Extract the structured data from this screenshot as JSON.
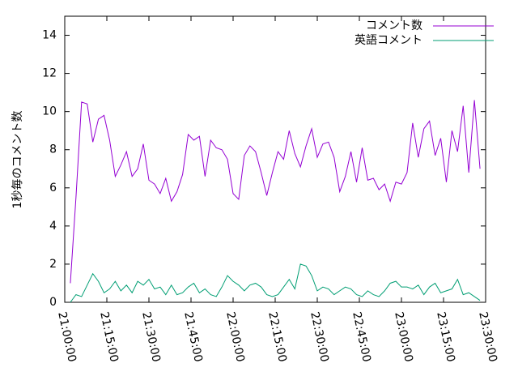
{
  "chart_data": {
    "type": "line",
    "ylabel": "1秒毎のコメント数",
    "x": [
      "21:02:00",
      "21:04:00",
      "21:06:00",
      "21:08:00",
      "21:10:00",
      "21:12:00",
      "21:14:00",
      "21:16:00",
      "21:18:00",
      "21:20:00",
      "21:22:00",
      "21:24:00",
      "21:26:00",
      "21:28:00",
      "21:30:00",
      "21:32:00",
      "21:34:00",
      "21:36:00",
      "21:38:00",
      "21:40:00",
      "21:42:00",
      "21:44:00",
      "21:46:00",
      "21:48:00",
      "21:50:00",
      "21:52:00",
      "21:54:00",
      "21:56:00",
      "21:58:00",
      "22:00:00",
      "22:02:00",
      "22:04:00",
      "22:06:00",
      "22:08:00",
      "22:10:00",
      "22:12:00",
      "22:14:00",
      "22:16:00",
      "22:18:00",
      "22:20:00",
      "22:22:00",
      "22:24:00",
      "22:26:00",
      "22:28:00",
      "22:30:00",
      "22:32:00",
      "22:34:00",
      "22:36:00",
      "22:38:00",
      "22:40:00",
      "22:42:00",
      "22:44:00",
      "22:46:00",
      "22:48:00",
      "22:50:00",
      "22:52:00",
      "22:54:00",
      "22:56:00",
      "22:58:00",
      "23:00:00",
      "23:02:00",
      "23:04:00",
      "23:06:00",
      "23:08:00",
      "23:10:00",
      "23:12:00",
      "23:14:00",
      "23:16:00",
      "23:18:00",
      "23:20:00",
      "23:22:00",
      "23:24:00",
      "23:26:00",
      "23:28:00"
    ],
    "series": [
      {
        "name": "コメント数",
        "color": "#9400d3",
        "values": [
          1.0,
          5.5,
          10.5,
          10.4,
          8.4,
          9.6,
          9.8,
          8.5,
          6.6,
          7.2,
          7.9,
          6.6,
          7.0,
          8.3,
          6.4,
          6.2,
          5.7,
          6.5,
          5.3,
          5.8,
          6.7,
          8.8,
          8.5,
          8.7,
          6.6,
          8.5,
          8.1,
          8.0,
          7.5,
          5.7,
          5.4,
          7.7,
          8.2,
          7.9,
          6.8,
          5.6,
          6.8,
          7.9,
          7.5,
          9.0,
          7.8,
          7.1,
          8.2,
          9.1,
          7.6,
          8.3,
          8.4,
          7.6,
          5.8,
          6.6,
          7.9,
          6.3,
          8.1,
          6.4,
          6.5,
          5.9,
          6.2,
          5.3,
          6.3,
          6.2,
          6.8,
          9.4,
          7.6,
          9.1,
          9.5,
          7.7,
          8.6,
          6.3,
          9.0,
          7.9,
          10.3,
          6.8,
          10.6,
          7.0
        ]
      },
      {
        "name": "英語コメント",
        "color": "#009e73",
        "values": [
          0.0,
          0.4,
          0.3,
          0.9,
          1.5,
          1.1,
          0.5,
          0.7,
          1.1,
          0.6,
          0.9,
          0.5,
          1.1,
          0.9,
          1.2,
          0.7,
          0.8,
          0.4,
          0.9,
          0.4,
          0.5,
          0.8,
          1.0,
          0.5,
          0.7,
          0.4,
          0.3,
          0.8,
          1.4,
          1.1,
          0.9,
          0.6,
          0.9,
          1.0,
          0.8,
          0.4,
          0.3,
          0.4,
          0.8,
          1.2,
          0.7,
          2.0,
          1.9,
          1.4,
          0.6,
          0.8,
          0.7,
          0.4,
          0.6,
          0.8,
          0.7,
          0.4,
          0.3,
          0.6,
          0.4,
          0.3,
          0.6,
          1.0,
          1.1,
          0.8,
          0.8,
          0.7,
          0.9,
          0.4,
          0.8,
          1.0,
          0.5,
          0.6,
          0.7,
          1.2,
          0.4,
          0.5,
          0.3,
          0.1
        ]
      }
    ],
    "xlim": [
      "21:00:00",
      "23:30:00"
    ],
    "xticks": [
      "21:00:00",
      "21:15:00",
      "21:30:00",
      "21:45:00",
      "22:00:00",
      "22:15:00",
      "22:30:00",
      "22:45:00",
      "23:00:00",
      "23:15:00",
      "23:30:00"
    ],
    "ylim": [
      0,
      15
    ],
    "yticks": [
      0,
      2,
      4,
      6,
      8,
      10,
      12,
      14
    ],
    "legend": "top-right"
  }
}
